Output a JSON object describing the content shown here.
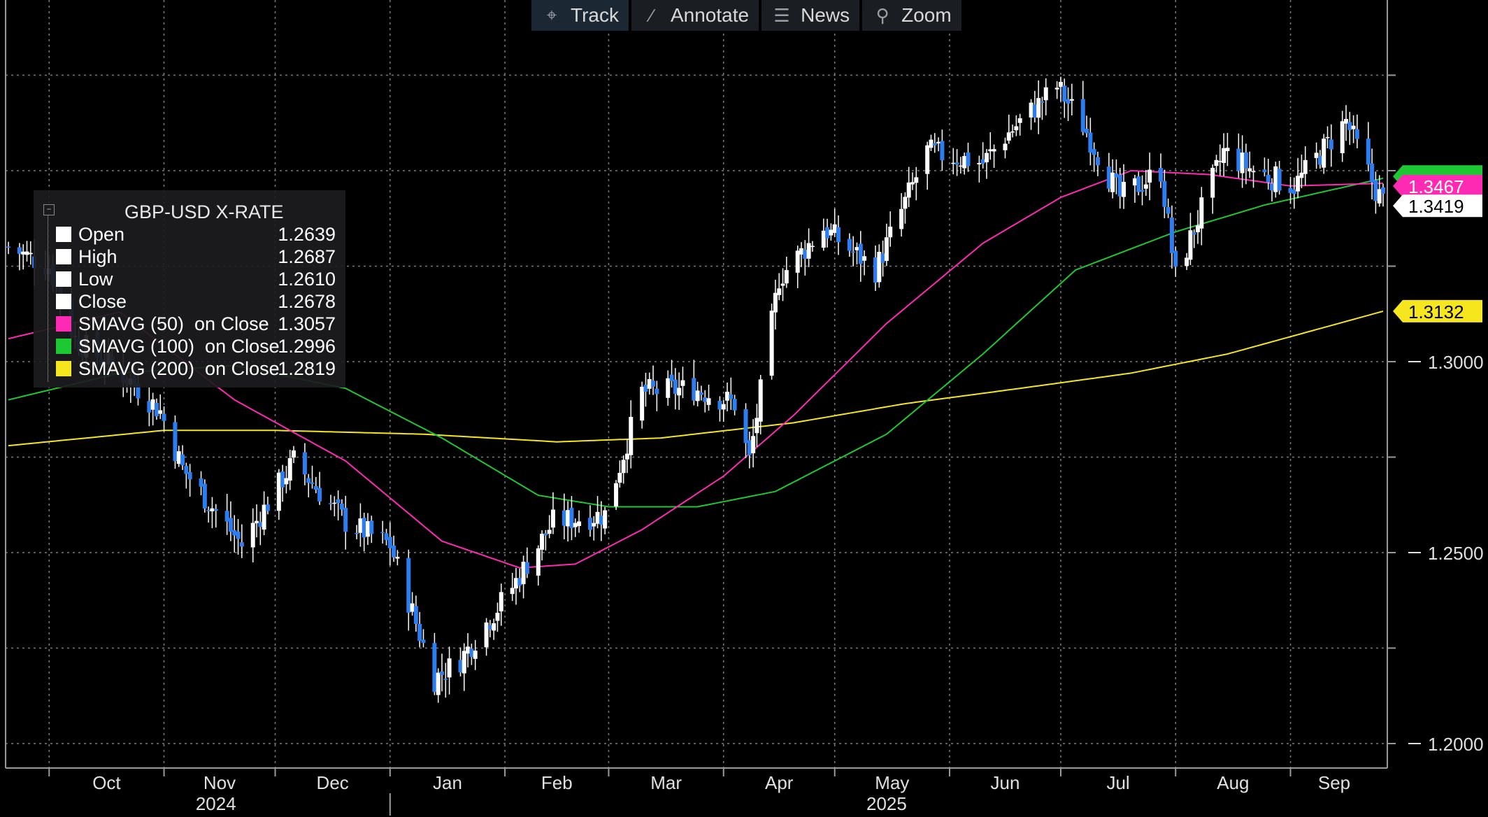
{
  "toolbar": {
    "items": [
      {
        "label": "Track",
        "icon": "crosshair-icon"
      },
      {
        "label": "Annotate",
        "icon": "pencil-icon"
      },
      {
        "label": "News",
        "icon": "news-icon"
      },
      {
        "label": "Zoom",
        "icon": "magnifier-icon"
      }
    ]
  },
  "legend": {
    "title": "GBP-USD X-RATE",
    "rows": [
      {
        "label": "Open",
        "value": "1.2639",
        "color": "#ffffff"
      },
      {
        "label": "High",
        "value": "1.2687",
        "color": "#ffffff"
      },
      {
        "label": "Low",
        "value": "1.2610",
        "color": "#ffffff"
      },
      {
        "label": "Close",
        "value": "1.2678",
        "color": "#ffffff"
      },
      {
        "label": "SMAVG (50)  on Close",
        "value": "1.3057",
        "color": "#ff2ab4"
      },
      {
        "label": "SMAVG (100)  on Close",
        "value": "1.2996",
        "color": "#1ec832"
      },
      {
        "label": "SMAVG (200)  on Close",
        "value": "1.2819",
        "color": "#f5e61e"
      }
    ]
  },
  "chart_data": {
    "type": "candlestick",
    "title": "GBP-USD X-RATE",
    "ylim": [
      1.195,
      1.39
    ],
    "y_ticks": [
      "1.2000",
      "1.2500",
      "1.3000"
    ],
    "x_month_labels": [
      "Oct",
      "Nov",
      "Dec",
      "Jan",
      "Feb",
      "Mar",
      "Apr",
      "May",
      "Jun",
      "Jul",
      "Aug",
      "Sep"
    ],
    "x_year_labels": [
      "2024",
      "2025"
    ],
    "grid": true,
    "price_tags": [
      {
        "value": "1.3467",
        "color": "#ff2ab4"
      },
      {
        "value": "1.3419",
        "color": "#ffffff"
      },
      {
        "value": "1.3132",
        "color": "#f5e61e"
      }
    ],
    "close_anchors": [
      {
        "date": "2024-09-20",
        "close": 1.33
      },
      {
        "date": "2024-10-01",
        "close": 1.325
      },
      {
        "date": "2024-10-08",
        "close": 1.306
      },
      {
        "date": "2024-10-23",
        "close": 1.295
      },
      {
        "date": "2024-10-31",
        "close": 1.287
      },
      {
        "date": "2024-11-06",
        "close": 1.272
      },
      {
        "date": "2024-11-22",
        "close": 1.252
      },
      {
        "date": "2024-12-06",
        "close": 1.274
      },
      {
        "date": "2024-12-20",
        "close": 1.258
      },
      {
        "date": "2025-01-01",
        "close": 1.252
      },
      {
        "date": "2025-01-13",
        "close": 1.217
      },
      {
        "date": "2025-01-20",
        "close": 1.222
      },
      {
        "date": "2025-02-03",
        "close": 1.241
      },
      {
        "date": "2025-02-14",
        "close": 1.258
      },
      {
        "date": "2025-02-28",
        "close": 1.26
      },
      {
        "date": "2025-03-10",
        "close": 1.292
      },
      {
        "date": "2025-03-24",
        "close": 1.293
      },
      {
        "date": "2025-04-04",
        "close": 1.289
      },
      {
        "date": "2025-04-08",
        "close": 1.274
      },
      {
        "date": "2025-04-16",
        "close": 1.322
      },
      {
        "date": "2025-04-28",
        "close": 1.335
      },
      {
        "date": "2025-05-12",
        "close": 1.324
      },
      {
        "date": "2025-05-26",
        "close": 1.355
      },
      {
        "date": "2025-06-10",
        "close": 1.352
      },
      {
        "date": "2025-06-16",
        "close": 1.359
      },
      {
        "date": "2025-06-30",
        "close": 1.372
      },
      {
        "date": "2025-07-07",
        "close": 1.362
      },
      {
        "date": "2025-07-17",
        "close": 1.343
      },
      {
        "date": "2025-07-28",
        "close": 1.35
      },
      {
        "date": "2025-08-01",
        "close": 1.322
      },
      {
        "date": "2025-08-14",
        "close": 1.355
      },
      {
        "date": "2025-08-22",
        "close": 1.35
      },
      {
        "date": "2025-09-02",
        "close": 1.346
      },
      {
        "date": "2025-09-16",
        "close": 1.363
      },
      {
        "date": "2025-09-24",
        "close": 1.345
      },
      {
        "date": "2025-09-26",
        "close": 1.3419
      }
    ],
    "sma50_anchors": [
      {
        "date": "2024-09-20",
        "value": 1.306
      },
      {
        "date": "2024-10-20",
        "value": 1.313
      },
      {
        "date": "2024-11-20",
        "value": 1.29
      },
      {
        "date": "2024-12-20",
        "value": 1.274
      },
      {
        "date": "2025-01-15",
        "value": 1.253
      },
      {
        "date": "2025-02-05",
        "value": 1.246
      },
      {
        "date": "2025-02-20",
        "value": 1.247
      },
      {
        "date": "2025-03-10",
        "value": 1.256
      },
      {
        "date": "2025-04-01",
        "value": 1.27
      },
      {
        "date": "2025-04-20",
        "value": 1.286
      },
      {
        "date": "2025-05-15",
        "value": 1.31
      },
      {
        "date": "2025-06-10",
        "value": 1.331
      },
      {
        "date": "2025-07-01",
        "value": 1.343
      },
      {
        "date": "2025-07-20",
        "value": 1.35
      },
      {
        "date": "2025-08-10",
        "value": 1.349
      },
      {
        "date": "2025-09-01",
        "value": 1.346
      },
      {
        "date": "2025-09-26",
        "value": 1.3467
      }
    ],
    "sma100_anchors": [
      {
        "date": "2024-09-20",
        "value": 1.29
      },
      {
        "date": "2024-10-20",
        "value": 1.297
      },
      {
        "date": "2024-11-20",
        "value": 1.299
      },
      {
        "date": "2024-12-20",
        "value": 1.293
      },
      {
        "date": "2025-01-15",
        "value": 1.28
      },
      {
        "date": "2025-02-10",
        "value": 1.265
      },
      {
        "date": "2025-03-01",
        "value": 1.262
      },
      {
        "date": "2025-03-25",
        "value": 1.262
      },
      {
        "date": "2025-04-15",
        "value": 1.266
      },
      {
        "date": "2025-05-15",
        "value": 1.281
      },
      {
        "date": "2025-06-10",
        "value": 1.302
      },
      {
        "date": "2025-07-05",
        "value": 1.324
      },
      {
        "date": "2025-08-01",
        "value": 1.334
      },
      {
        "date": "2025-08-25",
        "value": 1.341
      },
      {
        "date": "2025-09-26",
        "value": 1.348
      }
    ],
    "sma200_anchors": [
      {
        "date": "2024-09-20",
        "value": 1.278
      },
      {
        "date": "2024-11-01",
        "value": 1.282
      },
      {
        "date": "2024-12-01",
        "value": 1.282
      },
      {
        "date": "2025-01-10",
        "value": 1.281
      },
      {
        "date": "2025-02-15",
        "value": 1.279
      },
      {
        "date": "2025-03-15",
        "value": 1.28
      },
      {
        "date": "2025-04-20",
        "value": 1.284
      },
      {
        "date": "2025-05-20",
        "value": 1.289
      },
      {
        "date": "2025-06-20",
        "value": 1.293
      },
      {
        "date": "2025-07-20",
        "value": 1.297
      },
      {
        "date": "2025-08-15",
        "value": 1.302
      },
      {
        "date": "2025-09-26",
        "value": 1.3132
      }
    ]
  }
}
